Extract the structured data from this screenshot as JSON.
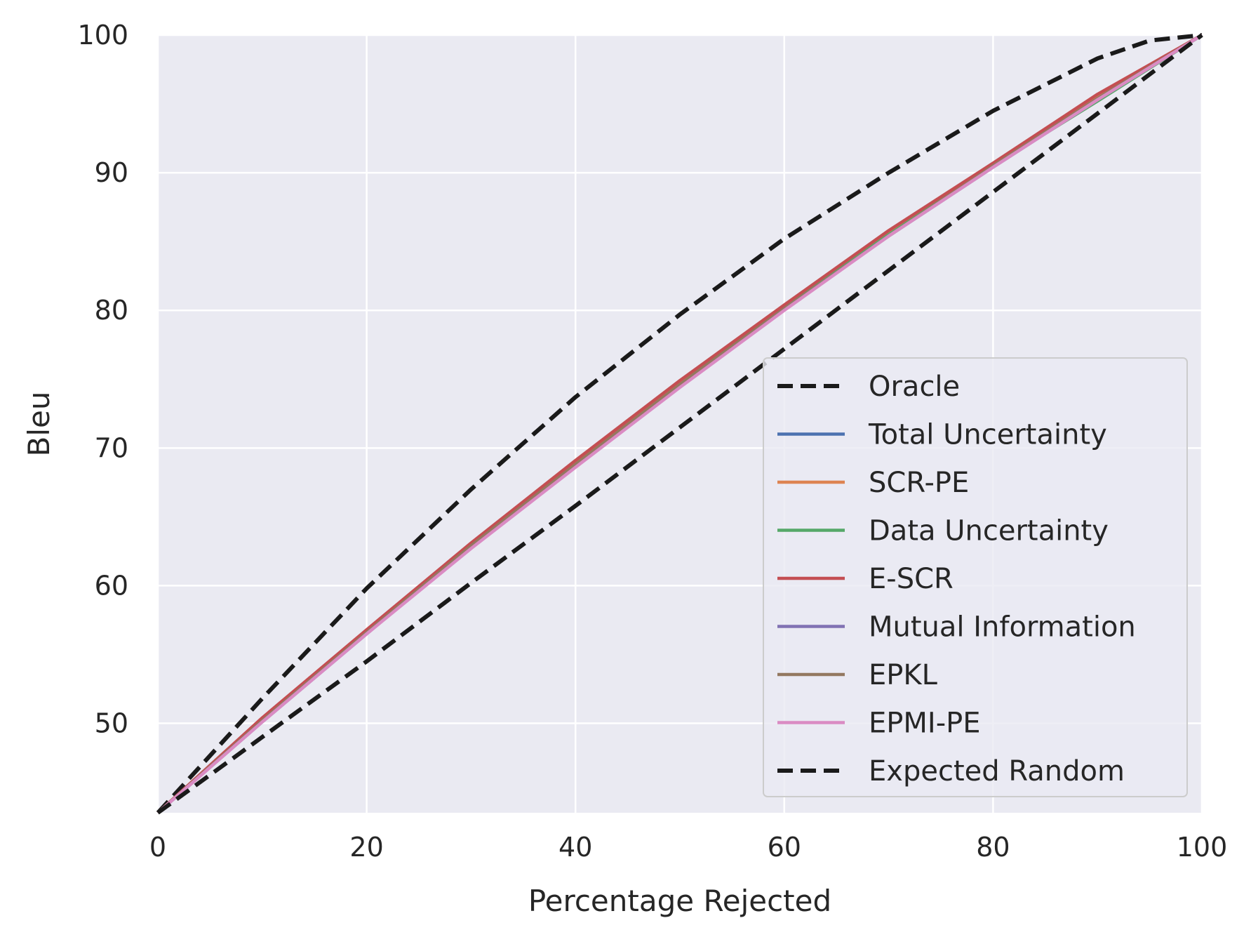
{
  "chart_data": {
    "type": "line",
    "title": "",
    "xlabel": "Percentage Rejected",
    "ylabel": "Bleu",
    "xlim": [
      0,
      100
    ],
    "ylim": [
      43.5,
      100
    ],
    "xticks": [
      0,
      20,
      40,
      60,
      80,
      100
    ],
    "yticks": [
      50,
      60,
      70,
      80,
      90,
      100
    ],
    "grid": true,
    "legend_position": "lower-right",
    "series": [
      {
        "name": "Oracle",
        "color": "#1a1a1a",
        "dashed": true,
        "x": [
          0,
          10,
          20,
          30,
          40,
          50,
          60,
          70,
          80,
          90,
          95,
          100
        ],
        "y": [
          43.5,
          51.8,
          59.8,
          67.0,
          73.7,
          79.7,
          85.2,
          90.0,
          94.5,
          98.3,
          99.6,
          100
        ]
      },
      {
        "name": "Total Uncertainty",
        "color": "#4c72b0",
        "dashed": false,
        "x": [
          0,
          10,
          20,
          30,
          40,
          50,
          60,
          70,
          80,
          90,
          100
        ],
        "y": [
          43.5,
          50.2,
          56.6,
          62.9,
          68.8,
          74.6,
          80.2,
          85.5,
          90.5,
          95.4,
          100
        ]
      },
      {
        "name": "SCR-PE",
        "color": "#dd8452",
        "dashed": false,
        "x": [
          0,
          10,
          20,
          30,
          40,
          50,
          60,
          70,
          80,
          90,
          100
        ],
        "y": [
          43.5,
          50.3,
          56.7,
          63.0,
          68.9,
          74.7,
          80.3,
          85.6,
          90.6,
          95.5,
          100
        ]
      },
      {
        "name": "Data Uncertainty",
        "color": "#55a868",
        "dashed": false,
        "x": [
          0,
          10,
          20,
          30,
          40,
          50,
          60,
          70,
          80,
          90,
          100
        ],
        "y": [
          43.5,
          50.2,
          56.6,
          62.9,
          68.8,
          74.6,
          80.2,
          85.5,
          90.5,
          95.2,
          100
        ]
      },
      {
        "name": "E-SCR",
        "color": "#c44e52",
        "dashed": false,
        "x": [
          0,
          10,
          20,
          30,
          40,
          50,
          60,
          70,
          80,
          90,
          100
        ],
        "y": [
          43.5,
          50.4,
          56.8,
          63.1,
          69.1,
          74.9,
          80.4,
          85.8,
          90.7,
          95.7,
          100
        ]
      },
      {
        "name": "Mutual Information",
        "color": "#8172b3",
        "dashed": false,
        "x": [
          0,
          10,
          20,
          30,
          40,
          50,
          60,
          70,
          80,
          90,
          100
        ],
        "y": [
          43.5,
          50.1,
          56.5,
          62.8,
          68.7,
          74.5,
          80.1,
          85.4,
          90.4,
          95.3,
          100
        ]
      },
      {
        "name": "EPKL",
        "color": "#937860",
        "dashed": false,
        "x": [
          0,
          10,
          20,
          30,
          40,
          50,
          60,
          70,
          80,
          90,
          100
        ],
        "y": [
          43.5,
          50.2,
          56.6,
          62.9,
          68.8,
          74.6,
          80.1,
          85.4,
          90.5,
          95.4,
          100
        ]
      },
      {
        "name": "EPMI-PE",
        "color": "#da8bc3",
        "dashed": false,
        "x": [
          0,
          10,
          20,
          30,
          40,
          50,
          60,
          70,
          80,
          90,
          100
        ],
        "y": [
          43.5,
          50.1,
          56.5,
          62.7,
          68.6,
          74.4,
          80.0,
          85.4,
          90.4,
          95.3,
          100
        ]
      },
      {
        "name": "Expected Random",
        "color": "#1a1a1a",
        "dashed": true,
        "x": [
          0,
          10,
          20,
          30,
          40,
          50,
          60,
          70,
          80,
          90,
          100
        ],
        "y": [
          43.5,
          49.0,
          54.5,
          60.2,
          65.8,
          71.5,
          77.2,
          82.9,
          88.6,
          94.3,
          100
        ]
      }
    ]
  }
}
